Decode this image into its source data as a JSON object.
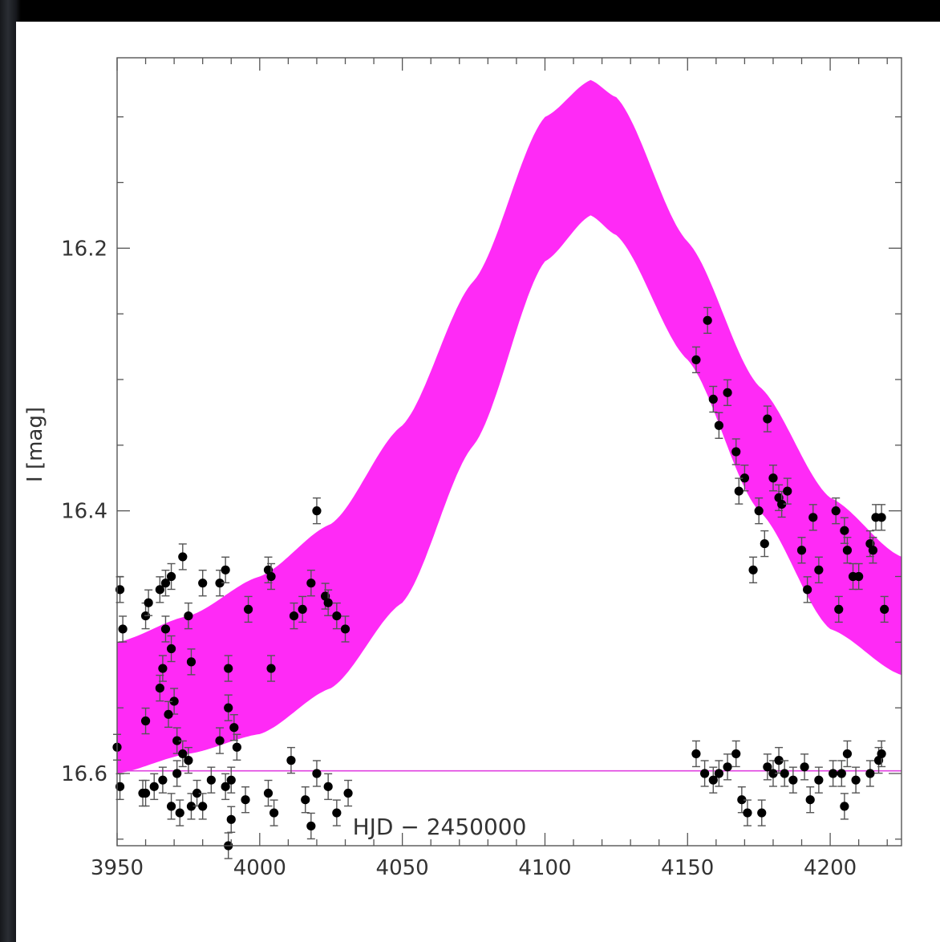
{
  "chart_data": {
    "type": "scatter",
    "xlabel": "HJD − 2450000",
    "ylabel": "I [mag]",
    "xlim": [
      3950,
      4225
    ],
    "ylim": [
      16.655,
      16.055
    ],
    "y_inverted": true,
    "x_ticks": [
      3950,
      4000,
      4050,
      4100,
      4150,
      4200
    ],
    "x_tick_labels": [
      "3950",
      "4000",
      "4050",
      "4100",
      "4150",
      "4200"
    ],
    "y_ticks": [
      16.2,
      16.4,
      16.6
    ],
    "y_tick_labels": [
      "16.2",
      "16.4",
      "16.6"
    ],
    "grid": false,
    "colors": {
      "band": "#ff2af6",
      "baseline": "#e040e0",
      "points": "#000000",
      "errorbars": "#555555"
    },
    "model_band": {
      "peak_x": 4116,
      "baseline_mag": 16.598,
      "bright_edge": [
        [
          3950,
          16.5
        ],
        [
          3975,
          16.48
        ],
        [
          4000,
          16.45
        ],
        [
          4025,
          16.41
        ],
        [
          4050,
          16.335
        ],
        [
          4075,
          16.225
        ],
        [
          4100,
          16.1
        ],
        [
          4116,
          16.072
        ],
        [
          4125,
          16.085
        ],
        [
          4150,
          16.195
        ],
        [
          4175,
          16.305
        ],
        [
          4200,
          16.39
        ],
        [
          4225,
          16.435
        ]
      ],
      "faint_edge": [
        [
          3950,
          16.6
        ],
        [
          3975,
          16.585
        ],
        [
          4000,
          16.57
        ],
        [
          4025,
          16.535
        ],
        [
          4050,
          16.47
        ],
        [
          4075,
          16.35
        ],
        [
          4100,
          16.21
        ],
        [
          4116,
          16.175
        ],
        [
          4125,
          16.19
        ],
        [
          4150,
          16.285
        ],
        [
          4175,
          16.4
        ],
        [
          4200,
          16.49
        ],
        [
          4225,
          16.525
        ]
      ]
    },
    "series": [
      {
        "name": "",
        "points": [
          [
            3951,
            16.46
          ],
          [
            3952,
            16.49
          ],
          [
            3960,
            16.48
          ],
          [
            3961,
            16.47
          ],
          [
            3965,
            16.46
          ],
          [
            3967,
            16.455
          ],
          [
            3969,
            16.45
          ],
          [
            3973,
            16.435
          ],
          [
            3975,
            16.48
          ],
          [
            3976,
            16.515
          ],
          [
            3969,
            16.505
          ],
          [
            3967,
            16.49
          ],
          [
            3965,
            16.535
          ],
          [
            3966,
            16.52
          ],
          [
            3970,
            16.545
          ],
          [
            3980,
            16.455
          ],
          [
            3986,
            16.455
          ],
          [
            3988,
            16.445
          ],
          [
            3989,
            16.52
          ],
          [
            3996,
            16.475
          ],
          [
            4003,
            16.445
          ],
          [
            4004,
            16.45
          ],
          [
            4004,
            16.52
          ],
          [
            4012,
            16.48
          ],
          [
            4015,
            16.475
          ],
          [
            4018,
            16.455
          ],
          [
            4023,
            16.465
          ],
          [
            4024,
            16.47
          ],
          [
            4027,
            16.48
          ],
          [
            4030,
            16.49
          ],
          [
            4020,
            16.4
          ],
          [
            3960,
            16.56
          ],
          [
            3968,
            16.555
          ],
          [
            3971,
            16.575
          ],
          [
            3971,
            16.6
          ],
          [
            3975,
            16.59
          ],
          [
            3973,
            16.585
          ],
          [
            3983,
            16.605
          ],
          [
            3986,
            16.575
          ],
          [
            3989,
            16.55
          ],
          [
            3991,
            16.565
          ],
          [
            3992,
            16.58
          ],
          [
            3950,
            16.58
          ],
          [
            3951,
            16.61
          ],
          [
            3959,
            16.615
          ],
          [
            3963,
            16.61
          ],
          [
            3966,
            16.605
          ],
          [
            3969,
            16.625
          ],
          [
            3972,
            16.63
          ],
          [
            3976,
            16.625
          ],
          [
            3978,
            16.615
          ],
          [
            3980,
            16.625
          ],
          [
            3988,
            16.61
          ],
          [
            3990,
            16.635
          ],
          [
            3990,
            16.605
          ],
          [
            3995,
            16.62
          ],
          [
            4003,
            16.615
          ],
          [
            4005,
            16.63
          ],
          [
            4011,
            16.59
          ],
          [
            4016,
            16.62
          ],
          [
            4018,
            16.64
          ],
          [
            4020,
            16.6
          ],
          [
            4024,
            16.61
          ],
          [
            4027,
            16.63
          ],
          [
            4031,
            16.615
          ],
          [
            3989,
            16.655
          ],
          [
            3960,
            16.615
          ],
          [
            4153,
            16.285
          ],
          [
            4157,
            16.255
          ],
          [
            4159,
            16.315
          ],
          [
            4161,
            16.335
          ],
          [
            4164,
            16.31
          ],
          [
            4167,
            16.355
          ],
          [
            4170,
            16.375
          ],
          [
            4168,
            16.385
          ],
          [
            4175,
            16.4
          ],
          [
            4178,
            16.33
          ],
          [
            4177,
            16.425
          ],
          [
            4180,
            16.375
          ],
          [
            4182,
            16.39
          ],
          [
            4183,
            16.395
          ],
          [
            4185,
            16.385
          ],
          [
            4190,
            16.43
          ],
          [
            4192,
            16.46
          ],
          [
            4194,
            16.405
          ],
          [
            4196,
            16.445
          ],
          [
            4202,
            16.4
          ],
          [
            4203,
            16.475
          ],
          [
            4205,
            16.415
          ],
          [
            4206,
            16.43
          ],
          [
            4208,
            16.45
          ],
          [
            4210,
            16.45
          ],
          [
            4214,
            16.425
          ],
          [
            4216,
            16.405
          ],
          [
            4218,
            16.405
          ],
          [
            4219,
            16.475
          ],
          [
            4215,
            16.43
          ],
          [
            4173,
            16.445
          ],
          [
            4153,
            16.585
          ],
          [
            4156,
            16.6
          ],
          [
            4159,
            16.605
          ],
          [
            4161,
            16.6
          ],
          [
            4164,
            16.595
          ],
          [
            4167,
            16.585
          ],
          [
            4169,
            16.62
          ],
          [
            4171,
            16.63
          ],
          [
            4176,
            16.63
          ],
          [
            4178,
            16.595
          ],
          [
            4180,
            16.6
          ],
          [
            4182,
            16.59
          ],
          [
            4184,
            16.6
          ],
          [
            4187,
            16.605
          ],
          [
            4191,
            16.595
          ],
          [
            4193,
            16.62
          ],
          [
            4196,
            16.605
          ],
          [
            4201,
            16.6
          ],
          [
            4204,
            16.6
          ],
          [
            4205,
            16.625
          ],
          [
            4206,
            16.585
          ],
          [
            4209,
            16.605
          ],
          [
            4214,
            16.6
          ],
          [
            4217,
            16.59
          ],
          [
            4218,
            16.585
          ]
        ]
      }
    ]
  }
}
